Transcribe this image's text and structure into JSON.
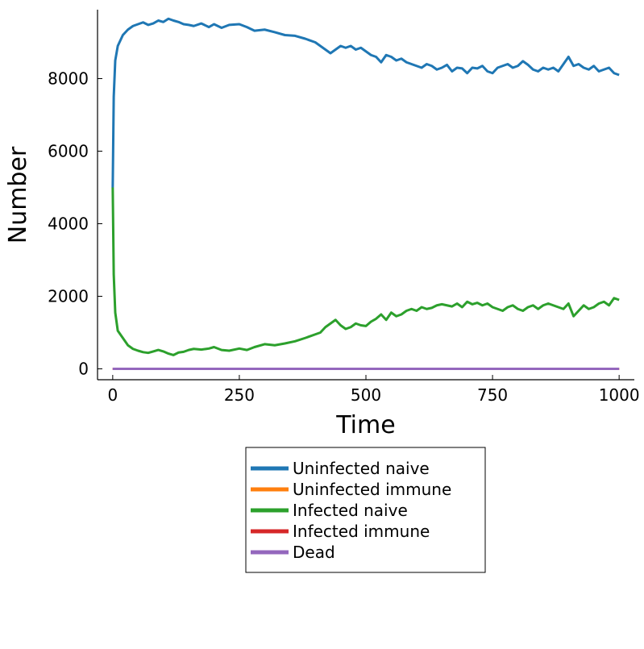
{
  "chart_data": {
    "type": "line",
    "title": "",
    "xlabel": "Time",
    "ylabel": "Number",
    "xlim": [
      -30,
      1030
    ],
    "ylim": [
      -300,
      9900
    ],
    "xticks": [
      0,
      250,
      500,
      750,
      1000
    ],
    "yticks": [
      0,
      2000,
      4000,
      6000,
      8000
    ],
    "grid": false,
    "legend_position": "below plot, centered",
    "series": [
      {
        "name": "Uninfected naive",
        "color": "#1f77b4",
        "x": [
          0,
          2,
          5,
          10,
          20,
          30,
          40,
          50,
          60,
          70,
          80,
          90,
          100,
          110,
          120,
          130,
          140,
          150,
          160,
          175,
          190,
          200,
          215,
          230,
          250,
          265,
          280,
          300,
          320,
          340,
          360,
          380,
          400,
          410,
          420,
          430,
          440,
          450,
          460,
          470,
          480,
          490,
          500,
          510,
          520,
          530,
          540,
          550,
          560,
          570,
          580,
          590,
          600,
          610,
          620,
          630,
          640,
          650,
          660,
          670,
          680,
          690,
          700,
          710,
          720,
          730,
          740,
          750,
          760,
          770,
          780,
          790,
          800,
          810,
          820,
          830,
          840,
          850,
          860,
          870,
          880,
          890,
          900,
          910,
          920,
          930,
          940,
          950,
          960,
          970,
          980,
          990,
          1000
        ],
        "y": [
          5000,
          7500,
          8500,
          8900,
          9200,
          9350,
          9450,
          9500,
          9550,
          9480,
          9520,
          9600,
          9560,
          9650,
          9600,
          9560,
          9500,
          9480,
          9450,
          9520,
          9420,
          9500,
          9400,
          9480,
          9500,
          9420,
          9320,
          9350,
          9280,
          9200,
          9180,
          9100,
          9000,
          8900,
          8800,
          8700,
          8800,
          8900,
          8850,
          8900,
          8800,
          8850,
          8750,
          8650,
          8600,
          8450,
          8650,
          8600,
          8500,
          8550,
          8450,
          8400,
          8350,
          8300,
          8400,
          8350,
          8250,
          8300,
          8380,
          8200,
          8300,
          8280,
          8150,
          8300,
          8280,
          8350,
          8200,
          8150,
          8300,
          8350,
          8400,
          8300,
          8350,
          8480,
          8380,
          8250,
          8200,
          8300,
          8250,
          8300,
          8200,
          8400,
          8600,
          8350,
          8400,
          8300,
          8250,
          8350,
          8200,
          8250,
          8300,
          8150,
          8100
        ]
      },
      {
        "name": "Uninfected immune",
        "color": "#ff7f0e",
        "x": [
          0,
          1000
        ],
        "y": [
          0,
          0
        ]
      },
      {
        "name": "Infected naive",
        "color": "#2ca02c",
        "x": [
          0,
          2,
          5,
          10,
          20,
          30,
          40,
          50,
          60,
          70,
          80,
          90,
          100,
          110,
          120,
          130,
          140,
          150,
          160,
          175,
          190,
          200,
          215,
          230,
          250,
          265,
          280,
          300,
          320,
          340,
          360,
          380,
          400,
          410,
          420,
          430,
          440,
          450,
          460,
          470,
          480,
          490,
          500,
          510,
          520,
          530,
          540,
          550,
          560,
          570,
          580,
          590,
          600,
          610,
          620,
          630,
          640,
          650,
          660,
          670,
          680,
          690,
          700,
          710,
          720,
          730,
          740,
          750,
          760,
          770,
          780,
          790,
          800,
          810,
          820,
          830,
          840,
          850,
          860,
          870,
          880,
          890,
          900,
          910,
          920,
          930,
          940,
          950,
          960,
          970,
          980,
          990,
          1000
        ],
        "y": [
          5000,
          2600,
          1550,
          1050,
          850,
          650,
          550,
          500,
          460,
          440,
          480,
          520,
          480,
          420,
          380,
          450,
          470,
          520,
          550,
          530,
          560,
          600,
          520,
          500,
          560,
          520,
          600,
          680,
          650,
          700,
          760,
          850,
          950,
          1000,
          1150,
          1250,
          1350,
          1200,
          1100,
          1150,
          1250,
          1200,
          1180,
          1300,
          1380,
          1500,
          1350,
          1550,
          1450,
          1500,
          1600,
          1650,
          1600,
          1700,
          1650,
          1680,
          1750,
          1780,
          1750,
          1720,
          1800,
          1700,
          1850,
          1780,
          1820,
          1750,
          1800,
          1700,
          1650,
          1600,
          1700,
          1750,
          1650,
          1600,
          1700,
          1750,
          1650,
          1750,
          1800,
          1750,
          1700,
          1650,
          1800,
          1450,
          1600,
          1750,
          1650,
          1700,
          1800,
          1850,
          1750,
          1950,
          1900
        ]
      },
      {
        "name": "Infected immune",
        "color": "#d62728",
        "x": [
          0,
          1000
        ],
        "y": [
          0,
          0
        ]
      },
      {
        "name": "Dead",
        "color": "#9467bd",
        "x": [
          0,
          1000
        ],
        "y": [
          0,
          0
        ]
      }
    ]
  }
}
